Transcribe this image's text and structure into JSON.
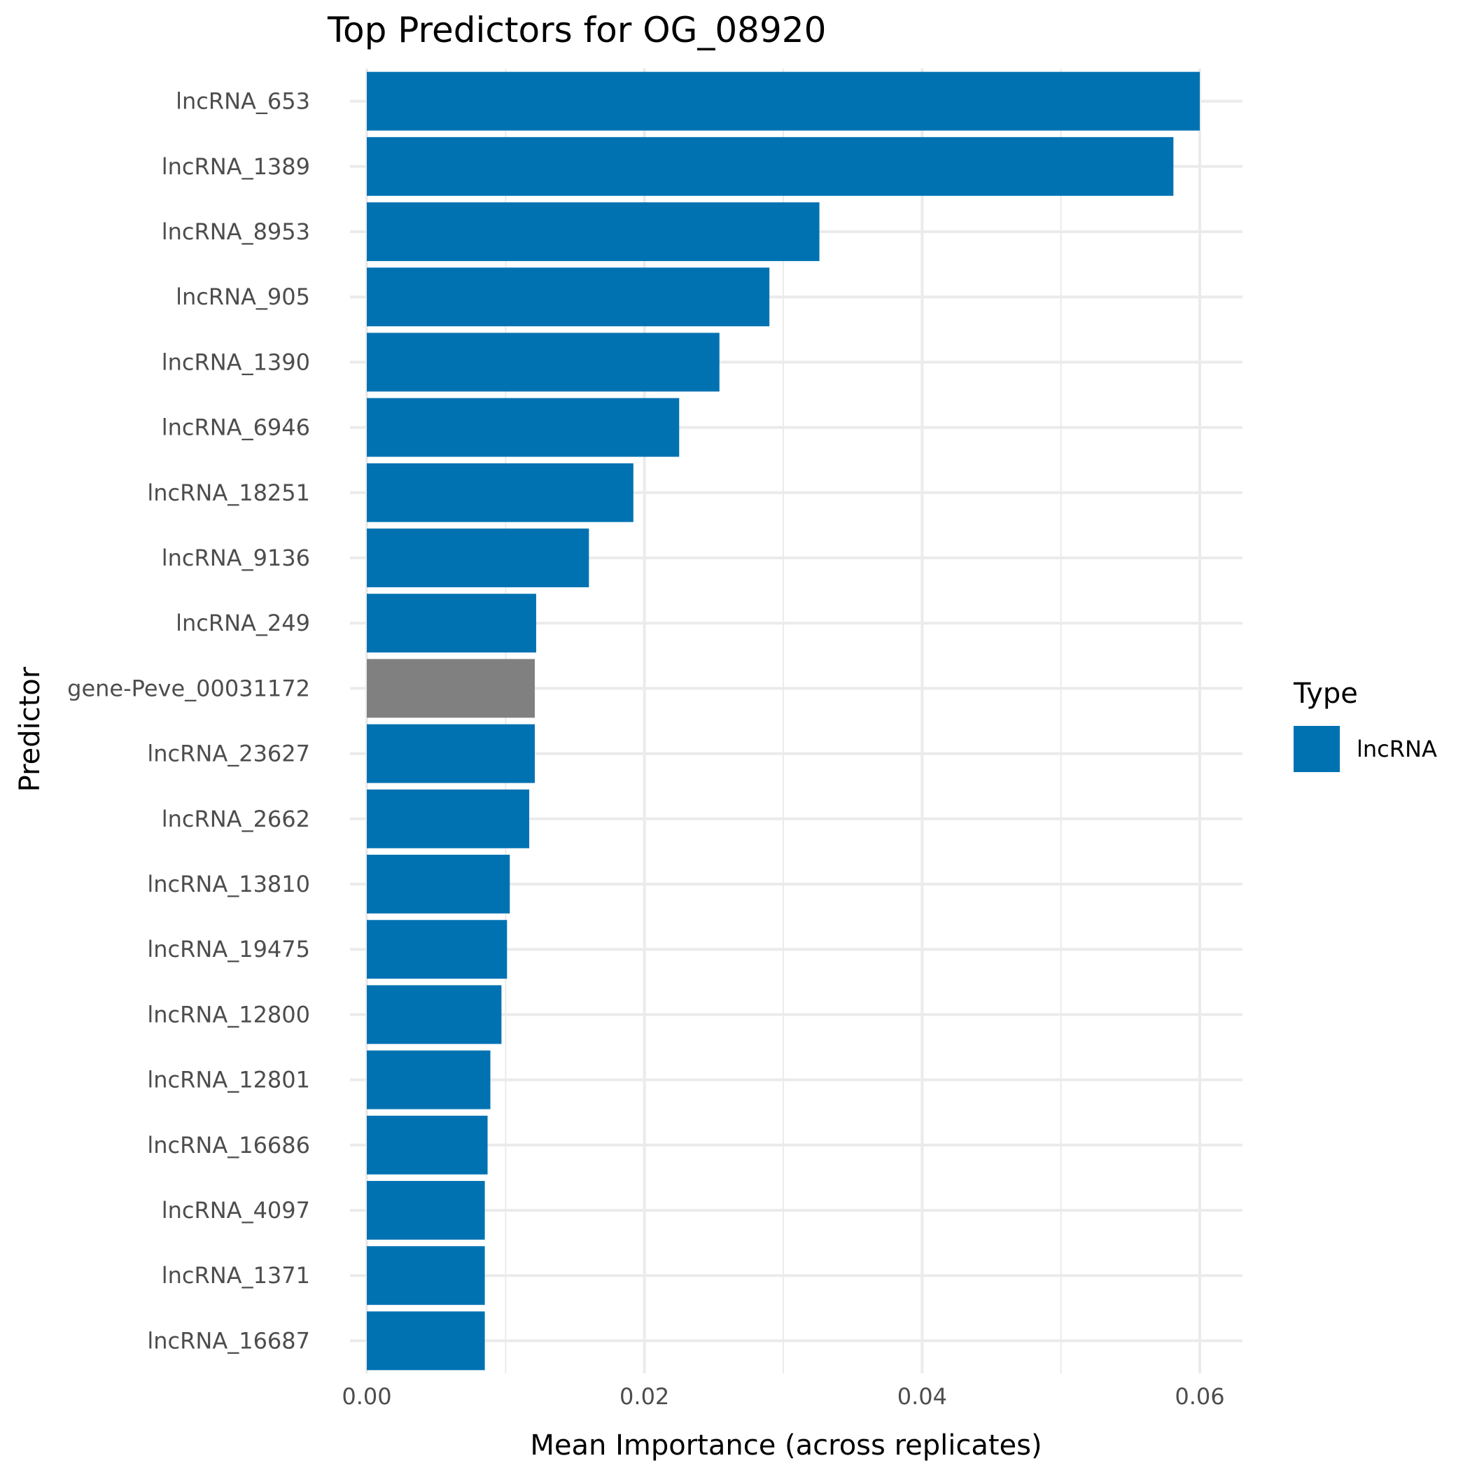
{
  "chart_data": {
    "type": "bar",
    "orientation": "horizontal",
    "title": "Top Predictors for OG_08920",
    "xlabel": "Mean Importance (across replicates)",
    "ylabel": "Predictor",
    "xlim": [
      0,
      0.063
    ],
    "x_ticks": [
      0,
      0.02,
      0.04,
      0.06
    ],
    "x_tick_labels": [
      "0.00",
      "0.02",
      "0.04",
      "0.06"
    ],
    "grid": true,
    "legend": {
      "title": "Type",
      "placement": "right",
      "entries": [
        {
          "label": "lncRNA",
          "color": "#0072B2"
        }
      ]
    },
    "categories": [
      "lncRNA_653",
      "lncRNA_1389",
      "lncRNA_8953",
      "lncRNA_905",
      "lncRNA_1390",
      "lncRNA_6946",
      "lncRNA_18251",
      "lncRNA_9136",
      "lncRNA_249",
      "gene-Peve_00031172",
      "lncRNA_23627",
      "lncRNA_2662",
      "lncRNA_13810",
      "lncRNA_19475",
      "lncRNA_12800",
      "lncRNA_12801",
      "lncRNA_16686",
      "lncRNA_4097",
      "lncRNA_1371",
      "lncRNA_16687"
    ],
    "values": [
      0.06,
      0.0581,
      0.0326,
      0.029,
      0.0254,
      0.0225,
      0.0192,
      0.016,
      0.0122,
      0.0121,
      0.0121,
      0.0117,
      0.0103,
      0.0101,
      0.0097,
      0.0089,
      0.0087,
      0.0085,
      0.0085,
      0.0085
    ],
    "types": [
      "lncRNA",
      "lncRNA",
      "lncRNA",
      "lncRNA",
      "lncRNA",
      "lncRNA",
      "lncRNA",
      "lncRNA",
      "lncRNA",
      "gene",
      "lncRNA",
      "lncRNA",
      "lncRNA",
      "lncRNA",
      "lncRNA",
      "lncRNA",
      "lncRNA",
      "lncRNA",
      "lncRNA",
      "lncRNA"
    ],
    "colors": {
      "lncRNA": "#0072B2",
      "gene": "#808080"
    }
  }
}
